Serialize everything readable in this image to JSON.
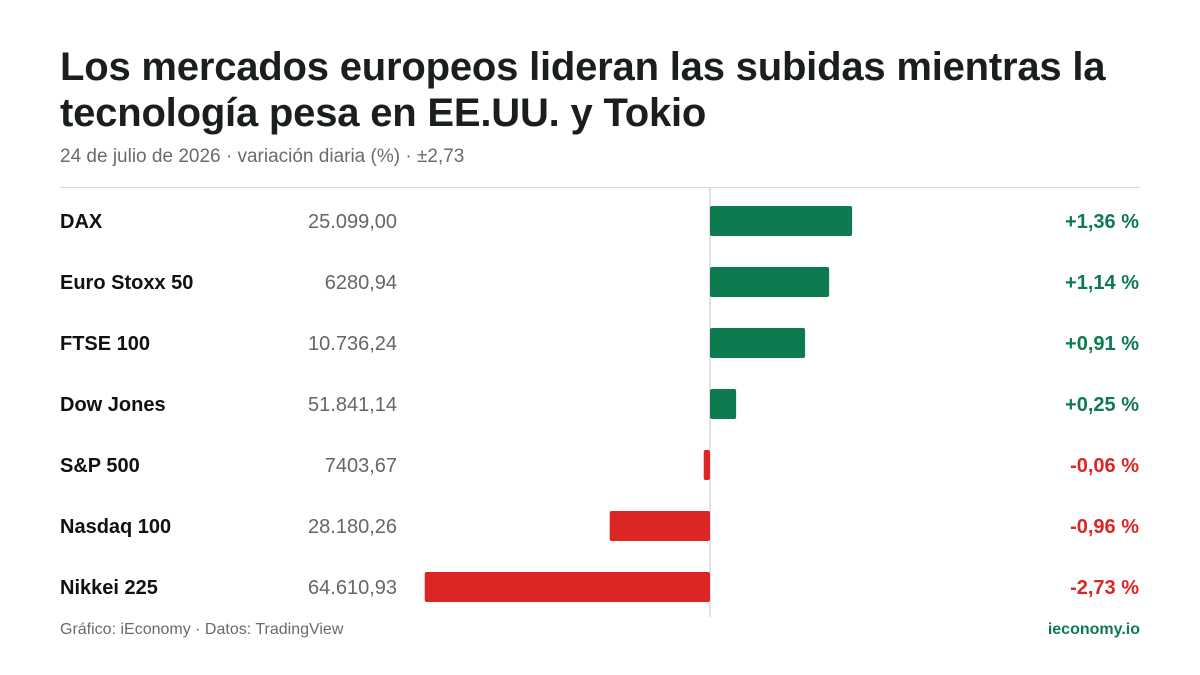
{
  "title": "Los mercados europeos lideran las subidas mientras la tecnología pesa en EE.UU. y Tokio",
  "subtitle": "24 de julio de 2026 · variación diaria (%) · ±2,73",
  "footer": {
    "source": "Gráfico: iEconomy · Datos: TradingView",
    "brand": "ieconomy.io"
  },
  "colors": {
    "positive": "#0e7a4f",
    "negative": "#dc2626",
    "axis": "#d9d9d9"
  },
  "chart_data": {
    "type": "bar",
    "orientation": "horizontal",
    "title": "Los mercados europeos lideran las subidas mientras la tecnología pesa en EE.UU. y Tokio",
    "subtitle": "24 de julio de 2026 · variación diaria (%) · ±2,73",
    "xlim": [
      -2.73,
      2.73
    ],
    "categories": [
      "DAX",
      "Euro Stoxx 50",
      "FTSE 100",
      "Dow Jones",
      "S&P 500",
      "Nasdaq 100",
      "Nikkei 225"
    ],
    "levels": [
      "25.099,00",
      "6280,94",
      "10.736,24",
      "51.841,14",
      "7403,67",
      "28.180,26",
      "64.610,93"
    ],
    "values": [
      1.36,
      1.14,
      0.91,
      0.25,
      -0.06,
      -0.96,
      -2.73
    ],
    "value_labels": [
      "+1,36 %",
      "+1,14 %",
      "+0,91 %",
      "+0,25 %",
      "-0,06 %",
      "-0,96 %",
      "-2,73 %"
    ]
  }
}
